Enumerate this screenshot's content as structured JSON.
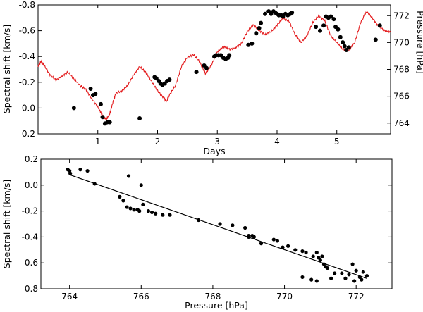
{
  "chart_data": [
    {
      "type": "line+scatter",
      "title": "",
      "xlabel": "Days",
      "ylabel": "Spectral shift [km/s]",
      "ylabel_right": "Pressure [hPa]",
      "xlim": [
        0,
        5.9
      ],
      "ylim": [
        -0.8,
        0.2
      ],
      "y_inverted": true,
      "ylim_right": [
        763.2,
        772.8
      ],
      "xticks": [
        "1",
        "2",
        "3",
        "4",
        "5"
      ],
      "yticks": [
        "-0.8",
        "-0.6",
        "-0.4",
        "-0.2",
        "0.0",
        "0.2"
      ],
      "yticks_right": [
        "764",
        "766",
        "768",
        "770",
        "772"
      ],
      "series": [
        {
          "name": "Pressure",
          "kind": "line",
          "axis": "right",
          "color": "#e31a1c",
          "x": [
            0.0,
            0.05,
            0.1,
            0.2,
            0.3,
            0.4,
            0.5,
            0.6,
            0.7,
            0.8,
            0.9,
            1.0,
            1.05,
            1.1,
            1.15,
            1.2,
            1.25,
            1.3,
            1.4,
            1.5,
            1.6,
            1.7,
            1.8,
            1.9,
            2.0,
            2.1,
            2.15,
            2.2,
            2.3,
            2.4,
            2.5,
            2.6,
            2.7,
            2.8,
            2.9,
            3.0,
            3.1,
            3.2,
            3.3,
            3.4,
            3.5,
            3.6,
            3.7,
            3.8,
            3.9,
            4.0,
            4.1,
            4.2,
            4.3,
            4.4,
            4.5,
            4.6,
            4.7,
            4.8,
            4.9,
            5.0,
            5.1,
            5.2,
            5.3,
            5.4,
            5.5,
            5.6,
            5.7,
            5.8,
            5.9
          ],
          "values": [
            768.2,
            768.6,
            768.3,
            767.6,
            767.2,
            767.5,
            767.8,
            767.3,
            766.8,
            766.5,
            765.8,
            765.2,
            764.8,
            764.4,
            764.3,
            764.7,
            765.5,
            766.2,
            766.4,
            766.8,
            767.6,
            768.2,
            767.8,
            767.1,
            766.4,
            765.9,
            765.6,
            766.1,
            766.8,
            768.2,
            768.9,
            769.1,
            768.6,
            767.7,
            768.3,
            769.3,
            769.7,
            769.5,
            769.6,
            769.9,
            770.8,
            771.3,
            770.9,
            770.6,
            770.8,
            771.3,
            771.8,
            771.6,
            770.6,
            770.0,
            770.5,
            771.5,
            772.0,
            771.6,
            770.5,
            770.0,
            769.5,
            769.4,
            770.0,
            771.5,
            772.3,
            771.8,
            771.2,
            770.9,
            770.8
          ]
        },
        {
          "name": "Spectral shift",
          "kind": "scatter",
          "axis": "left",
          "color": "#000000",
          "x": [
            0.6,
            0.88,
            0.92,
            0.96,
            1.05,
            1.08,
            1.12,
            1.16,
            1.2,
            1.7,
            1.95,
            1.98,
            2.02,
            2.05,
            2.08,
            2.12,
            2.16,
            2.2,
            2.65,
            2.78,
            2.82,
            2.95,
            2.98,
            3.02,
            3.06,
            3.1,
            3.14,
            3.18,
            3.2,
            3.52,
            3.58,
            3.65,
            3.7,
            3.73,
            3.8,
            3.86,
            3.9,
            3.94,
            3.97,
            4.0,
            4.03,
            4.07,
            4.1,
            4.14,
            4.18,
            4.22,
            4.25,
            4.65,
            4.72,
            4.78,
            4.82,
            4.86,
            4.9,
            4.95,
            4.98,
            5.02,
            5.06,
            5.1,
            5.13,
            5.16,
            5.2,
            5.65,
            5.72
          ],
          "values": [
            0.0,
            -0.15,
            -0.1,
            -0.11,
            -0.03,
            0.07,
            0.12,
            0.11,
            0.11,
            0.08,
            -0.24,
            -0.23,
            -0.21,
            -0.19,
            -0.18,
            -0.19,
            -0.21,
            -0.22,
            -0.28,
            -0.33,
            -0.31,
            -0.4,
            -0.41,
            -0.41,
            -0.41,
            -0.39,
            -0.38,
            -0.39,
            -0.41,
            -0.49,
            -0.5,
            -0.58,
            -0.62,
            -0.66,
            -0.73,
            -0.75,
            -0.73,
            -0.75,
            -0.74,
            -0.73,
            -0.72,
            -0.72,
            -0.71,
            -0.73,
            -0.72,
            -0.73,
            -0.74,
            -0.63,
            -0.6,
            -0.64,
            -0.71,
            -0.7,
            -0.71,
            -0.69,
            -0.63,
            -0.61,
            -0.55,
            -0.51,
            -0.48,
            -0.45,
            -0.47,
            -0.53,
            -0.64
          ]
        }
      ]
    },
    {
      "type": "scatter",
      "title": "",
      "xlabel": "Pressure [hPa]",
      "ylabel": "Spectral shift [km/s]",
      "xlim": [
        763.2,
        773.0
      ],
      "ylim": [
        -0.8,
        0.2
      ],
      "xticks": [
        "764",
        "766",
        "768",
        "770",
        "772"
      ],
      "yticks": [
        "0.2",
        "0.0",
        "-0.2",
        "-0.4",
        "-0.6",
        "-0.8"
      ],
      "series": [
        {
          "name": "Data",
          "kind": "scatter",
          "color": "#000000",
          "x": [
            763.95,
            764.0,
            764.02,
            764.3,
            764.5,
            764.7,
            765.4,
            765.5,
            765.6,
            765.65,
            765.7,
            765.8,
            765.9,
            766.0,
            766.05,
            765.95,
            766.2,
            766.3,
            766.4,
            766.6,
            766.8,
            767.6,
            768.2,
            768.55,
            768.9,
            769.0,
            769.1,
            769.15,
            769.35,
            769.7,
            769.8,
            769.95,
            770.1,
            770.3,
            770.5,
            770.6,
            770.8,
            770.9,
            771.0,
            771.1,
            771.15,
            771.2,
            771.4,
            771.6,
            771.8,
            771.9,
            772.0,
            772.1,
            772.2,
            772.3,
            770.5,
            770.75,
            770.9,
            771.3,
            771.7,
            771.95,
            772.15,
            770.95,
            771.05,
            769.0
          ],
          "values": [
            0.12,
            0.11,
            0.09,
            0.12,
            0.11,
            0.01,
            -0.09,
            -0.12,
            -0.17,
            0.07,
            -0.18,
            -0.19,
            -0.19,
            0.0,
            -0.15,
            -0.2,
            -0.2,
            -0.21,
            -0.22,
            -0.23,
            -0.23,
            -0.27,
            -0.3,
            -0.31,
            -0.33,
            -0.39,
            -0.39,
            -0.4,
            -0.45,
            -0.42,
            -0.43,
            -0.48,
            -0.47,
            -0.5,
            -0.51,
            -0.52,
            -0.55,
            -0.52,
            -0.58,
            -0.61,
            -0.63,
            -0.64,
            -0.68,
            -0.68,
            -0.69,
            -0.61,
            -0.66,
            -0.71,
            -0.67,
            -0.7,
            -0.71,
            -0.73,
            -0.74,
            -0.72,
            -0.72,
            -0.74,
            -0.73,
            -0.56,
            -0.55,
            -0.4
          ]
        },
        {
          "name": "Linear fit",
          "kind": "line",
          "color": "#000000",
          "x": [
            764.0,
            772.3
          ],
          "values": [
            0.08,
            -0.72
          ]
        }
      ]
    }
  ]
}
